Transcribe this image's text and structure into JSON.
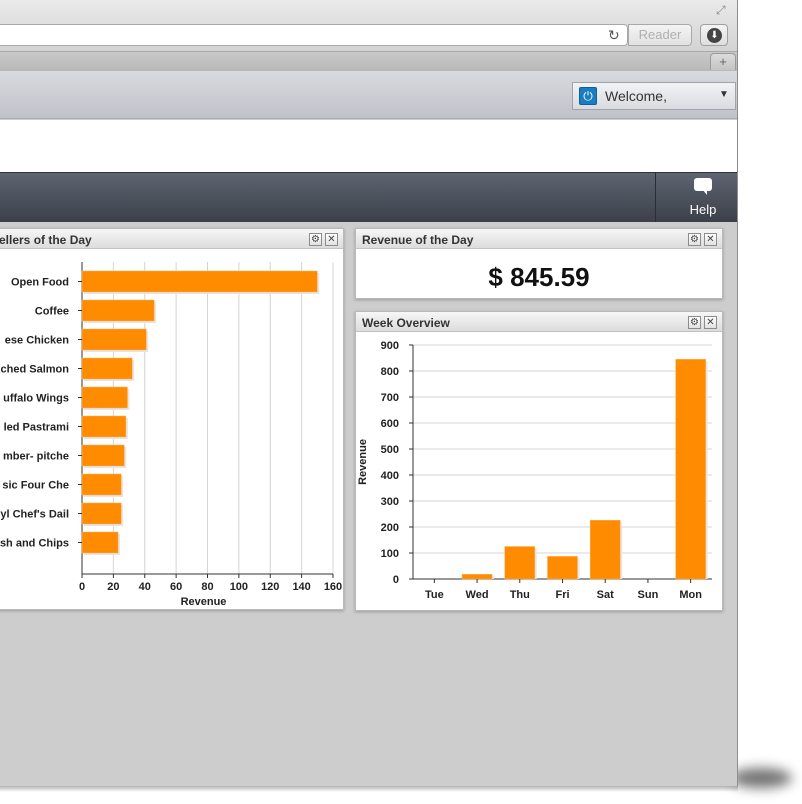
{
  "browser": {
    "reader_label": "Reader",
    "new_tab_label": "+",
    "reload_icon": "reload-icon",
    "download_icon": "download-icon"
  },
  "header": {
    "welcome_label": "Welcome,",
    "power_icon": "power-icon"
  },
  "nav": {
    "help_label": "Help",
    "help_icon": "speech-bubble-icon"
  },
  "best_sellers": {
    "title": "ellers of the Day"
  },
  "revenue_day": {
    "title": "Revenue of the Day",
    "value": "$ 845.59"
  },
  "week_overview": {
    "title": "Week Overview"
  },
  "colors": {
    "bar": "#ff8c00",
    "nav": "#4a4f59",
    "accent": "#1b7dc1"
  },
  "chart_data": [
    {
      "type": "bar",
      "orientation": "horizontal",
      "categories": [
        "Open Food",
        "Coffee",
        "ese Chicken",
        "ched Salmon",
        "uffalo Wings",
        "led Pastrami",
        "mber- pitche",
        "sic Four Che",
        "yl Chef's Dail",
        "sh and Chips"
      ],
      "values": [
        150,
        46,
        41,
        32,
        29,
        28,
        27,
        25,
        25,
        23
      ],
      "xlabel": "Revenue",
      "ylabel": "",
      "xlim": [
        0,
        160
      ],
      "xticks": [
        "0",
        "20",
        "40",
        "60",
        "80",
        "100",
        "120",
        "140",
        "160"
      ],
      "grid": "vertical"
    },
    {
      "type": "bar",
      "categories": [
        "Tue",
        "Wed",
        "Thu",
        "Fri",
        "Sat",
        "Sun",
        "Mon"
      ],
      "values": [
        0,
        18,
        125,
        87,
        226,
        0,
        845
      ],
      "xlabel": "",
      "ylabel": "Revenue",
      "ylim": [
        0,
        900
      ],
      "yticks": [
        "0",
        "100",
        "200",
        "300",
        "400",
        "500",
        "600",
        "700",
        "800",
        "900"
      ],
      "grid": "horizontal"
    }
  ]
}
